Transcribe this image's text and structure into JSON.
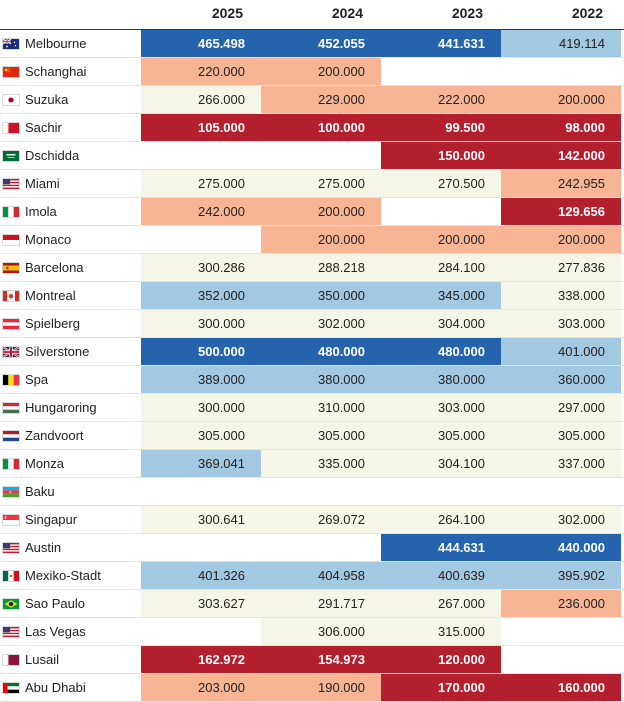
{
  "chart_data": {
    "type": "heatmap",
    "title": "",
    "columns": [
      "2025",
      "2024",
      "2023",
      "2022"
    ],
    "colors": {
      "very_high": "#2563ac",
      "high": "#a3c8e2",
      "neutral": "#f6f6e8",
      "low": "#f7b596",
      "very_low": "#b41f2e",
      "empty": "#ffffff"
    },
    "rows": [
      {
        "circuit": "Melbourne",
        "flag": "flag-australia-icon",
        "values": [
          "465.498",
          "452.055",
          "441.631",
          "419.114"
        ],
        "levels": [
          "very_high",
          "very_high",
          "very_high",
          "high"
        ]
      },
      {
        "circuit": "Schanghai",
        "flag": "flag-china-icon",
        "values": [
          "220.000",
          "200.000",
          null,
          null
        ],
        "levels": [
          "low",
          "low",
          "empty",
          "empty"
        ]
      },
      {
        "circuit": "Suzuka",
        "flag": "flag-japan-icon",
        "values": [
          "266.000",
          "229.000",
          "222.000",
          "200.000"
        ],
        "levels": [
          "neutral",
          "low",
          "low",
          "low"
        ]
      },
      {
        "circuit": "Sachir",
        "flag": "flag-bahrain-icon",
        "values": [
          "105.000",
          "100.000",
          "99.500",
          "98.000"
        ],
        "levels": [
          "very_low",
          "very_low",
          "very_low",
          "very_low"
        ]
      },
      {
        "circuit": "Dschidda",
        "flag": "flag-saudi-arabia-icon",
        "values": [
          null,
          null,
          "150.000",
          "142.000"
        ],
        "levels": [
          "empty",
          "empty",
          "very_low",
          "very_low"
        ]
      },
      {
        "circuit": "Miami",
        "flag": "flag-usa-icon",
        "values": [
          "275.000",
          "275.000",
          "270.500",
          "242.955"
        ],
        "levels": [
          "neutral",
          "neutral",
          "neutral",
          "low"
        ]
      },
      {
        "circuit": "Imola",
        "flag": "flag-italy-icon",
        "values": [
          "242.000",
          "200.000",
          null,
          "129.656"
        ],
        "levels": [
          "low",
          "low",
          "empty",
          "very_low"
        ]
      },
      {
        "circuit": "Monaco",
        "flag": "flag-monaco-icon",
        "values": [
          null,
          "200.000",
          "200.000",
          "200.000"
        ],
        "levels": [
          "empty",
          "low",
          "low",
          "low"
        ]
      },
      {
        "circuit": "Barcelona",
        "flag": "flag-spain-icon",
        "values": [
          "300.286",
          "288.218",
          "284.100",
          "277.836"
        ],
        "levels": [
          "neutral",
          "neutral",
          "neutral",
          "neutral"
        ]
      },
      {
        "circuit": "Montreal",
        "flag": "flag-canada-icon",
        "values": [
          "352.000",
          "350.000",
          "345.000",
          "338.000"
        ],
        "levels": [
          "high",
          "high",
          "high",
          "neutral"
        ]
      },
      {
        "circuit": "Spielberg",
        "flag": "flag-austria-icon",
        "values": [
          "300.000",
          "302.000",
          "304.000",
          "303.000"
        ],
        "levels": [
          "neutral",
          "neutral",
          "neutral",
          "neutral"
        ]
      },
      {
        "circuit": "Silverstone",
        "flag": "flag-uk-icon",
        "values": [
          "500.000",
          "480.000",
          "480.000",
          "401.000"
        ],
        "levels": [
          "very_high",
          "very_high",
          "very_high",
          "high"
        ]
      },
      {
        "circuit": "Spa",
        "flag": "flag-belgium-icon",
        "values": [
          "389.000",
          "380.000",
          "380.000",
          "360.000"
        ],
        "levels": [
          "high",
          "high",
          "high",
          "high"
        ]
      },
      {
        "circuit": "Hungaroring",
        "flag": "flag-hungary-icon",
        "values": [
          "300.000",
          "310.000",
          "303.000",
          "297.000"
        ],
        "levels": [
          "neutral",
          "neutral",
          "neutral",
          "neutral"
        ]
      },
      {
        "circuit": "Zandvoort",
        "flag": "flag-netherlands-icon",
        "values": [
          "305.000",
          "305.000",
          "305.000",
          "305.000"
        ],
        "levels": [
          "neutral",
          "neutral",
          "neutral",
          "neutral"
        ]
      },
      {
        "circuit": "Monza",
        "flag": "flag-italy-icon",
        "values": [
          "369.041",
          "335.000",
          "304.100",
          "337.000"
        ],
        "levels": [
          "high",
          "neutral",
          "neutral",
          "neutral"
        ]
      },
      {
        "circuit": "Baku",
        "flag": "flag-azerbaijan-icon",
        "values": [
          null,
          null,
          null,
          null
        ],
        "levels": [
          "empty",
          "empty",
          "empty",
          "empty"
        ]
      },
      {
        "circuit": "Singapur",
        "flag": "flag-singapore-icon",
        "values": [
          "300.641",
          "269.072",
          "264.100",
          "302.000"
        ],
        "levels": [
          "neutral",
          "neutral",
          "neutral",
          "neutral"
        ]
      },
      {
        "circuit": "Austin",
        "flag": "flag-usa-icon",
        "values": [
          null,
          null,
          "444.631",
          "440.000"
        ],
        "levels": [
          "empty",
          "empty",
          "very_high",
          "very_high"
        ]
      },
      {
        "circuit": "Mexiko-Stadt",
        "flag": "flag-mexico-icon",
        "values": [
          "401.326",
          "404.958",
          "400.639",
          "395.902"
        ],
        "levels": [
          "high",
          "high",
          "high",
          "high"
        ]
      },
      {
        "circuit": "Sao Paulo",
        "flag": "flag-brazil-icon",
        "values": [
          "303.627",
          "291.717",
          "267.000",
          "236.000"
        ],
        "levels": [
          "neutral",
          "neutral",
          "neutral",
          "low"
        ]
      },
      {
        "circuit": "Las Vegas",
        "flag": "flag-usa-icon",
        "values": [
          null,
          "306.000",
          "315.000",
          null
        ],
        "levels": [
          "empty",
          "neutral",
          "neutral",
          "empty"
        ]
      },
      {
        "circuit": "Lusail",
        "flag": "flag-qatar-icon",
        "values": [
          "162.972",
          "154.973",
          "120.000",
          null
        ],
        "levels": [
          "very_low",
          "very_low",
          "very_low",
          "empty"
        ]
      },
      {
        "circuit": "Abu Dhabi",
        "flag": "flag-uae-icon",
        "values": [
          "203.000",
          "190.000",
          "170.000",
          "160.000"
        ],
        "levels": [
          "low",
          "low",
          "very_low",
          "very_low"
        ]
      }
    ]
  }
}
